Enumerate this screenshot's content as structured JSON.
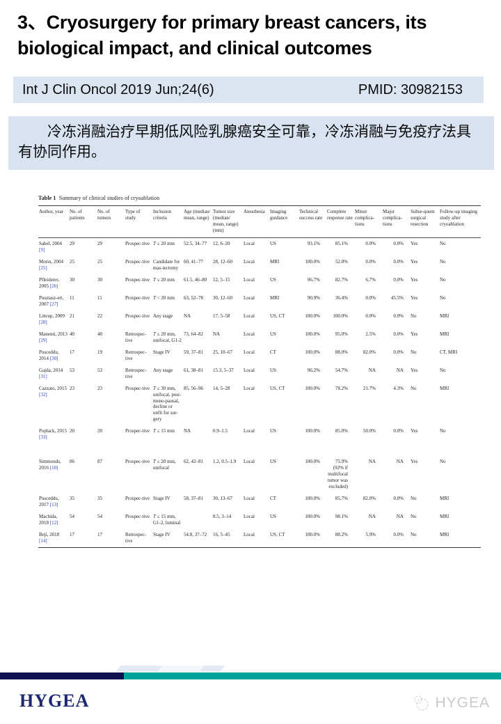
{
  "slide": {
    "title": "3、Cryosurgery for primary breast cancers, its biological impact, and clinical outcomes",
    "journal": "Int J Clin Oncol 2019 Jun;24(6)",
    "pmid": "PMID: 30982153",
    "abstract_cn": "冷冻消融治疗早期低风险乳腺癌安全可靠，冷冻消融与免疫疗法具有协同作用。"
  },
  "table": {
    "caption_label": "Table 1",
    "caption_text": "Summary of clinical studies of cryoablation",
    "headers": [
      "Author, year",
      "No. of patients",
      "No. of tumors",
      "Type of study",
      "Inclusion criteria",
      "Age (median/ mean, range)",
      "Tumor size (median/ mean, range) (mm)",
      "Anesthesia",
      "Imaging guidance",
      "Technical success rate",
      "Complete response rate",
      "Minor complica-tions",
      "Major complica-tions",
      "Subse-quent surgical resection",
      "Follow-up imaging study after cryoablation"
    ],
    "rows": [
      {
        "author": "Sabel, 2004",
        "ref": "[9]",
        "cells": [
          "29",
          "29",
          "Prospec-tive",
          "T ≤ 20 mm",
          "52.5, 34–77",
          "12, 6–20",
          "Local",
          "US",
          "93.1%",
          "85.1%",
          "0.0%",
          "0.0%",
          "Yes",
          "No"
        ]
      },
      {
        "author": "Morin, 2004",
        "ref": "[25]",
        "cells": [
          "25",
          "25",
          "Prospec-tive",
          "Candidate for mas-tectomy",
          "60, 41–77",
          "28, 12–60",
          "Local",
          "MRI",
          "100.0%",
          "52.0%",
          "0.0%",
          "0.0%",
          "Yes",
          "No"
        ]
      },
      {
        "author": "Pfleiderer, 2005",
        "ref": "[26]",
        "cells": [
          "30",
          "30",
          "Prospec-tive",
          "T ≤ 20 mm",
          "61.5, 46–80",
          "12, 5–15",
          "Local",
          "US",
          "96.7%",
          "82.7%",
          "6.7%",
          "0.0%",
          "Yes",
          "No"
        ]
      },
      {
        "author": "Pusztasz-eri, 2007",
        "ref": "[27]",
        "cells": [
          "11",
          "11",
          "Prospec-tive",
          "T < 20 mm",
          "63, 52–78",
          "30, 12–60",
          "Local",
          "MRI",
          "90.9%",
          "36.4%",
          "0.0%",
          "45.5%",
          "Yes",
          "No"
        ]
      },
      {
        "author": "Littrup, 2009",
        "ref": "[28]",
        "cells": [
          "21",
          "22",
          "Prospec-tive",
          "Any stage",
          "NA",
          "17, 5–58",
          "Local",
          "US, CT",
          "100.0%",
          "100.0%",
          "0.0%",
          "0.0%",
          "No",
          "MRI"
        ]
      },
      {
        "author": "Manenti, 2013",
        "ref": "[29]",
        "cells": [
          "40",
          "40",
          "Retrospec-tive",
          "T ≤ 20 mm, unifocal, G1-2",
          "73, 64–82",
          "NA",
          "Local",
          "US",
          "100.0%",
          "95.0%",
          "2.5%",
          "0.0%",
          "Yes",
          "MRI"
        ]
      },
      {
        "author": "Pusceddu, 2014",
        "ref": "[30]",
        "cells": [
          "17",
          "19",
          "Retrospec-tive",
          "Stage IV",
          "59, 37–81",
          "25, 10–67",
          "Local",
          "CT",
          "100.0%",
          "88.0%",
          "82.0%",
          "0.0%",
          "No",
          "CT, MRI"
        ]
      },
      {
        "author": "Gajda, 2014",
        "ref": "[31]",
        "cells": [
          "53",
          "53",
          "Retrospec-tive",
          "Any stage",
          "61, 38–81",
          "15.3, 5–37",
          "Local",
          "US",
          "96.2%",
          "54.7%",
          "NA",
          "NA",
          "Yes",
          "No"
        ]
      },
      {
        "author": "Cazzato, 2015",
        "ref": "[32]",
        "cells": [
          "23",
          "23",
          "Prospec-tive",
          "T ≤ 30 mm, unifocal, post-meno-pausal, decline or unfit for sur-gery",
          "85, 56–96",
          "14, 5–28",
          "Local",
          "US, CT",
          "100.0%",
          "78.2%",
          "21.7%",
          "4.3%",
          "No",
          "MRI"
        ]
      },
      {
        "author": "Poplack, 2015",
        "ref": "[33]",
        "cells": [
          "20",
          "20",
          "Prospec-tive",
          "T ≤ 15 mm",
          "NA",
          "0.9–1.5",
          "Local",
          "US",
          "100.0%",
          "85.0%",
          "50.0%",
          "0.0%",
          "Yes",
          "No"
        ]
      },
      {
        "author": "Simmonds, 2016",
        "ref": "[10]",
        "gap": true,
        "cells": [
          "86",
          "87",
          "Prospec-tive",
          "T ≤ 20 mm, unifocal",
          "62, 42–81",
          "1.2, 0.5–1.9",
          "Local",
          "US",
          "100.0%",
          "75.9% (92% if multifocal tumor was excluded)",
          "NA",
          "NA",
          "Yes",
          "No"
        ]
      },
      {
        "author": "Pusceddu, 2017",
        "ref": "[13]",
        "cells": [
          "35",
          "35",
          "Prospec-tive",
          "Stage IV",
          "58, 37–81",
          "30, 13–67",
          "Local",
          "CT",
          "100.0%",
          "85.7%",
          "82.0%",
          "0.0%",
          "No",
          "MRI"
        ]
      },
      {
        "author": "Machida, 2018",
        "ref": "[12]",
        "cells": [
          "54",
          "54",
          "Prospec-tive",
          "T ≤ 15 mm, G1-2, luminal",
          "",
          "8.5, 3–14",
          "Local",
          "US",
          "100.0%",
          "98.1%",
          "NA",
          "NA",
          "No",
          "MRI"
        ]
      },
      {
        "author": "Beji, 2018",
        "ref": "[14]",
        "cells": [
          "17",
          "17",
          "Retrospec-tive",
          "Stage IV",
          "54.8, 37–72",
          "16, 5–45",
          "Local",
          "US, CT",
          "100.0%",
          "88.2%",
          "5.9%",
          "0.0%",
          "No",
          "MRI"
        ]
      }
    ]
  },
  "footer": {
    "logo_text": "HYGEA",
    "watermark_text": "HYGEA"
  },
  "colors": {
    "journal_bar_bg": "#dbe5f1",
    "abstract_bg": "#d8e2f0",
    "footer_navy": "#10104f",
    "footer_teal": "#01a29a",
    "logo_navy": "#1b2770",
    "ref_blue": "#2f43c0"
  }
}
